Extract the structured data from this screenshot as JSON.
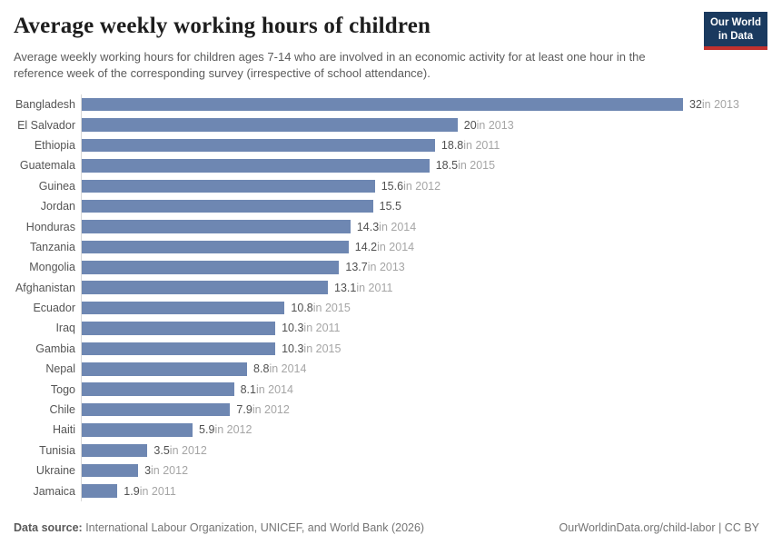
{
  "header": {
    "title": "Average weekly working hours of children",
    "subtitle": "Average weekly working hours for children ages 7-14 who are involved in an economic activity for at least one hour in the reference week of the corresponding survey (irrespective of school attendance).",
    "logo": {
      "line1": "Our World",
      "line2": "in Data"
    }
  },
  "chart_data": {
    "type": "bar",
    "orientation": "horizontal",
    "title": "Average weekly working hours of children",
    "xlabel": "",
    "ylabel": "",
    "xlim": [
      0,
      32
    ],
    "grid": false,
    "legend": false,
    "bar_color": "#6e87b2",
    "categories": [
      "Bangladesh",
      "El Salvador",
      "Ethiopia",
      "Guatemala",
      "Guinea",
      "Jordan",
      "Honduras",
      "Tanzania",
      "Mongolia",
      "Afghanistan",
      "Ecuador",
      "Iraq",
      "Gambia",
      "Nepal",
      "Togo",
      "Chile",
      "Haiti",
      "Tunisia",
      "Ukraine",
      "Jamaica"
    ],
    "values": [
      32,
      20,
      18.8,
      18.5,
      15.6,
      15.5,
      14.3,
      14.2,
      13.7,
      13.1,
      10.8,
      10.3,
      10.3,
      8.8,
      8.1,
      7.9,
      5.9,
      3.5,
      3,
      1.9
    ],
    "value_labels": [
      "32",
      "20",
      "18.8",
      "18.5",
      "15.6",
      "15.5",
      "14.3",
      "14.2",
      "13.7",
      "13.1",
      "10.8",
      "10.3",
      "10.3",
      "8.8",
      "8.1",
      "7.9",
      "5.9",
      "3.5",
      "3",
      "1.9"
    ],
    "year_labels": [
      "in 2013",
      "in 2013",
      "in 2011",
      "in 2015",
      "in 2012",
      "",
      "in 2014",
      "in 2014",
      "in 2013",
      "in 2011",
      "in 2015",
      "in 2011",
      "in 2015",
      "in 2014",
      "in 2014",
      "in 2012",
      "in 2012",
      "in 2012",
      "in 2012",
      "in 2011"
    ]
  },
  "footer": {
    "source_label": "Data source:",
    "source_text": " International Labour Organization, UNICEF, and World Bank (2026)",
    "credit": "OurWorldinData.org/child-labor | CC BY"
  },
  "colors": {
    "bar": "#6e87b2",
    "logo_bg": "#1a3a5f",
    "logo_accent": "#c0312e",
    "axis_line": "#d9d9d9"
  }
}
